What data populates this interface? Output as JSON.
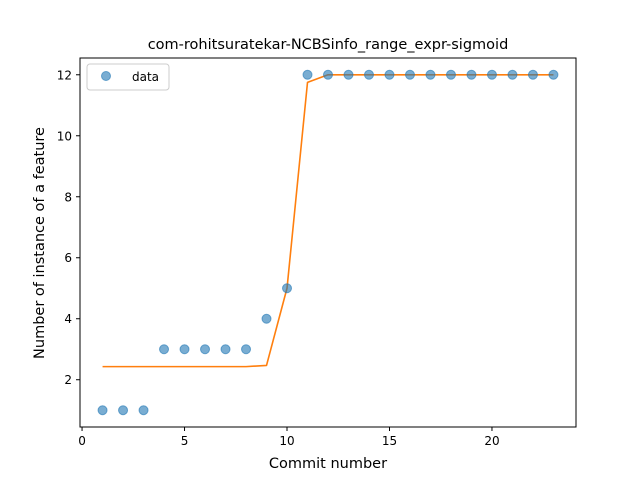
{
  "chart_data": {
    "type": "scatter",
    "title": "com-rohitsuratekar-NCBSinfo_range_expr-sigmoid",
    "xlabel": "Commit number",
    "ylabel": "Number of instance of a feature",
    "xlim": [
      -0.1,
      24.1
    ],
    "ylim": [
      0.45,
      12.55
    ],
    "xticks": [
      0,
      5,
      10,
      15,
      20
    ],
    "yticks": [
      2,
      4,
      6,
      8,
      10,
      12
    ],
    "grid": false,
    "legend_position": "upper-left",
    "series": [
      {
        "name": "data",
        "kind": "scatter",
        "color": "#1f77b4",
        "x": [
          1,
          2,
          3,
          4,
          5,
          6,
          7,
          8,
          9,
          10,
          11,
          12,
          13,
          14,
          15,
          16,
          17,
          18,
          19,
          20,
          21,
          22,
          23
        ],
        "y": [
          1,
          1,
          1,
          3,
          3,
          3,
          3,
          3,
          4,
          5,
          12,
          12,
          12,
          12,
          12,
          12,
          12,
          12,
          12,
          12,
          12,
          12,
          12
        ]
      },
      {
        "kind": "line",
        "color": "#ff7f0e",
        "x": [
          1,
          2,
          3,
          4,
          5,
          6,
          7,
          8,
          9,
          10,
          11,
          12,
          13,
          14,
          15,
          16,
          17,
          18,
          19,
          20,
          21,
          22,
          23
        ],
        "y": [
          2.43,
          2.43,
          2.43,
          2.43,
          2.43,
          2.43,
          2.43,
          2.43,
          2.47,
          5.0,
          11.75,
          12.0,
          12.0,
          12.0,
          12.0,
          12.0,
          12.0,
          12.0,
          12.0,
          12.0,
          12.0,
          12.0,
          12.0
        ]
      }
    ]
  }
}
